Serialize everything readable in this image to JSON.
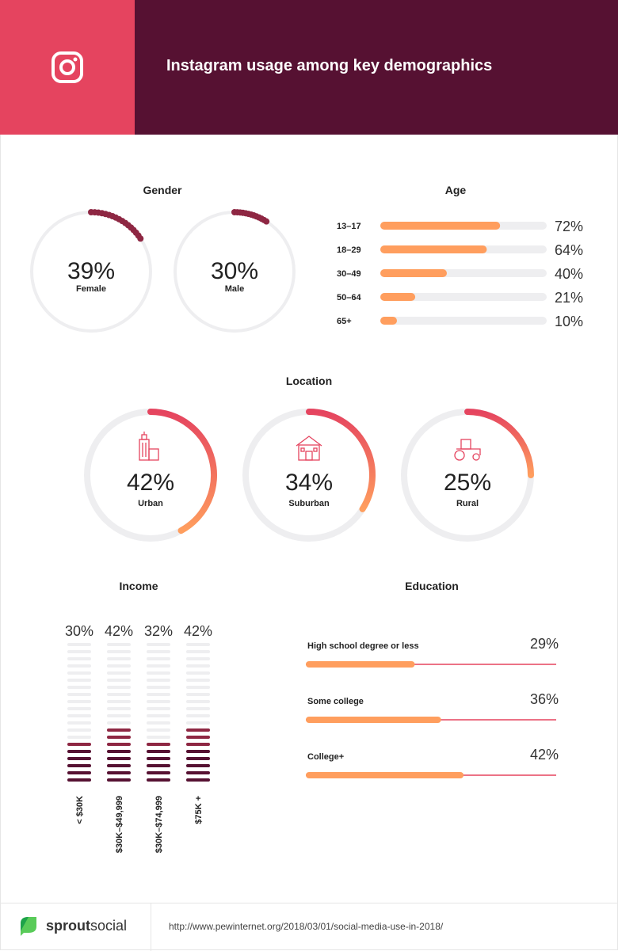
{
  "header": {
    "title": "Instagram usage among key demographics",
    "icon": "instagram-icon",
    "colors": {
      "left": "#e5445f",
      "right": "#561132"
    }
  },
  "chart_data": [
    {
      "type": "radial-dots",
      "title": "Gender",
      "categories": [
        "Female",
        "Male"
      ],
      "values": [
        39,
        30
      ],
      "value_labels": [
        "39%",
        "30%"
      ],
      "color": "#8e2743",
      "range": [
        0,
        100
      ]
    },
    {
      "type": "bar",
      "title": "Age",
      "orientation": "horizontal",
      "categories": [
        "13–17",
        "18–29",
        "30–49",
        "50–64",
        "65+"
      ],
      "values": [
        72,
        64,
        40,
        21,
        10
      ],
      "value_labels": [
        "72%",
        "64%",
        "40%",
        "21%",
        "10%"
      ],
      "color": "#ff9e5e",
      "range": [
        0,
        100
      ]
    },
    {
      "type": "donut",
      "title": "Location",
      "categories": [
        "Urban",
        "Suburban",
        "Rural"
      ],
      "values": [
        42,
        34,
        25
      ],
      "value_labels": [
        "42%",
        "34%",
        "25%"
      ],
      "icons": [
        "city-buildings-icon",
        "house-icon",
        "tractor-icon"
      ],
      "colors": {
        "start": "#e5445f",
        "end": "#ff9e5e"
      },
      "range": [
        0,
        100
      ]
    },
    {
      "type": "bar",
      "title": "Income",
      "orientation": "vertical-stacked-segments",
      "categories": [
        "< $30K",
        "$30K–$49,999",
        "$30K–$74,999",
        "$75K +"
      ],
      "values": [
        30,
        42,
        32,
        42
      ],
      "value_labels": [
        "30%",
        "42%",
        "32%",
        "42%"
      ],
      "colors": {
        "dark": "#561132",
        "light": "#8e2743",
        "empty": "#eeeef0"
      },
      "range": [
        0,
        100
      ]
    },
    {
      "type": "bar",
      "title": "Education",
      "orientation": "horizontal",
      "categories": [
        "High school degree or less",
        "Some college",
        "College+"
      ],
      "values": [
        29,
        36,
        42
      ],
      "value_labels": [
        "29%",
        "36%",
        "42%"
      ],
      "colors": {
        "bar": "#ff9e5e",
        "track": "#e5445f"
      },
      "range": [
        0,
        100
      ]
    }
  ],
  "footer": {
    "brand_a": "sprout",
    "brand_b": "social",
    "url": "http://www.pewinternet.org/2018/03/01/social-media-use-in-2018/"
  }
}
